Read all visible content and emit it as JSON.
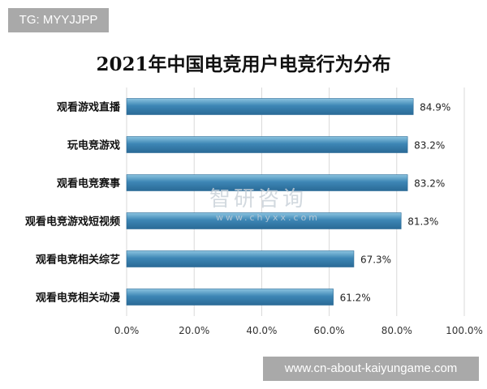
{
  "badges": {
    "tag": "TG: MYYJJPP",
    "url": "www.cn-about-kaiyungame.com"
  },
  "watermark": {
    "name": "智研咨询",
    "site": "www.chyxx.com"
  },
  "chart_data": {
    "type": "bar",
    "orientation": "horizontal",
    "title": "2021年中国电竞用户电竞行为分布",
    "categories": [
      "观看游戏直播",
      "玩电竞游戏",
      "观看电竞赛事",
      "观看电竞游戏短视频",
      "观看电竞相关综艺",
      "观看电竞相关动漫"
    ],
    "values": [
      84.9,
      83.2,
      83.2,
      81.3,
      67.3,
      61.2
    ],
    "value_labels": [
      "84.9%",
      "83.2%",
      "83.2%",
      "81.3%",
      "67.3%",
      "61.2%"
    ],
    "xlim": [
      0,
      100
    ],
    "xticks": [
      "0.0%",
      "20.0%",
      "40.0%",
      "60.0%",
      "80.0%",
      "100.0%"
    ],
    "grid": true,
    "bar_color": "#3d86b5"
  }
}
